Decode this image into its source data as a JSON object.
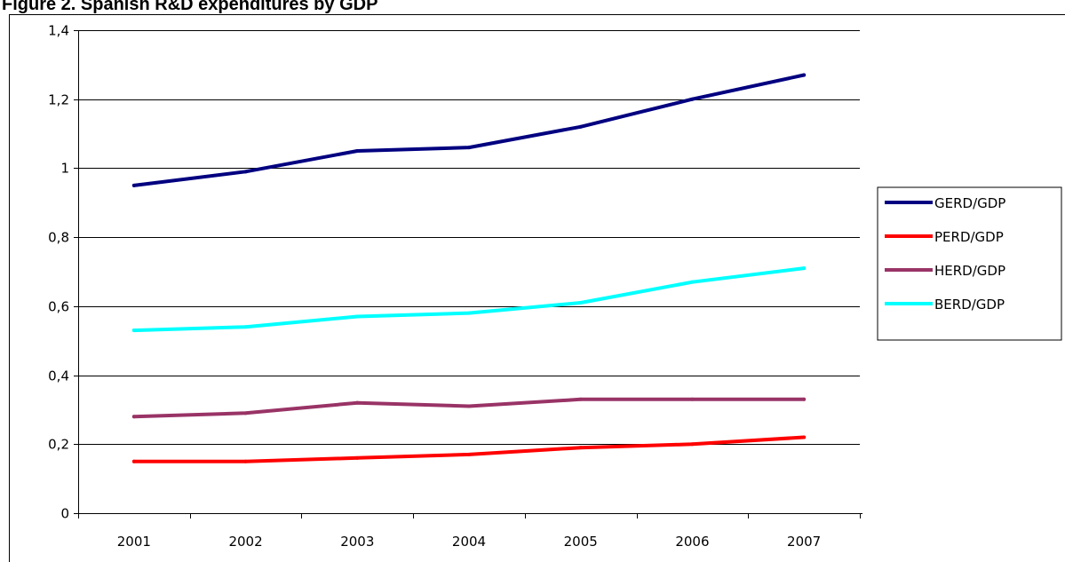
{
  "chart_data": {
    "type": "line",
    "title": "Figure 2. Spanish R&D expenditures by GDP",
    "xlabel": "",
    "ylabel": "",
    "categories": [
      "2001",
      "2002",
      "2003",
      "2004",
      "2005",
      "2006",
      "2007"
    ],
    "y_ticks": [
      "0",
      "0,2",
      "0,4",
      "0,6",
      "0,8",
      "1",
      "1,2",
      "1,4"
    ],
    "ylim": [
      0,
      1.4
    ],
    "grid": true,
    "legend_position": "right",
    "series": [
      {
        "name": "GERD/GDP",
        "color": "#000080",
        "values": [
          0.95,
          0.99,
          1.05,
          1.06,
          1.12,
          1.2,
          1.27
        ]
      },
      {
        "name": "PERD/GDP",
        "color": "#ff0000",
        "values": [
          0.15,
          0.15,
          0.16,
          0.17,
          0.19,
          0.2,
          0.22
        ]
      },
      {
        "name": "HERD/GDP",
        "color": "#993366",
        "values": [
          0.28,
          0.29,
          0.32,
          0.31,
          0.33,
          0.33,
          0.33
        ]
      },
      {
        "name": "BERD/GDP",
        "color": "#00ffff",
        "values": [
          0.53,
          0.54,
          0.57,
          0.58,
          0.61,
          0.67,
          0.71
        ]
      }
    ]
  }
}
